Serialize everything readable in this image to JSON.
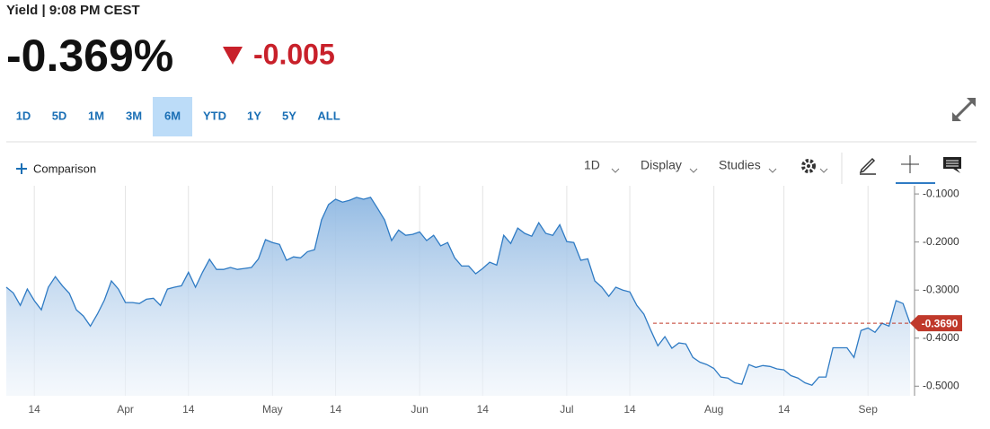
{
  "header": {
    "title": "Yield | 9:08 PM CEST",
    "last": "-0.369%",
    "change": "-0.005"
  },
  "tabs": {
    "items": [
      "1D",
      "5D",
      "1M",
      "3M",
      "6M",
      "YTD",
      "1Y",
      "5Y",
      "ALL"
    ],
    "selected": 4
  },
  "toolbar": {
    "comparison": "Comparison",
    "interval": "1D",
    "display": "Display",
    "studies": "Studies"
  },
  "chart_data": {
    "type": "line",
    "fill": true,
    "color": "#2f7bc4",
    "categories": [
      null,
      null,
      null,
      null,
      "14",
      null,
      null,
      null,
      null,
      null,
      null,
      null,
      null,
      null,
      null,
      null,
      null,
      "Apr",
      null,
      null,
      null,
      null,
      null,
      null,
      null,
      null,
      "14",
      null,
      null,
      null,
      null,
      null,
      null,
      null,
      null,
      null,
      null,
      null,
      "May",
      null,
      null,
      null,
      null,
      null,
      null,
      null,
      null,
      "14",
      null,
      null,
      null,
      null,
      null,
      null,
      null,
      null,
      null,
      null,
      null,
      "Jun",
      null,
      null,
      null,
      null,
      null,
      null,
      null,
      null,
      "14",
      null,
      null,
      null,
      null,
      null,
      null,
      null,
      null,
      null,
      null,
      null,
      "Jul",
      null,
      null,
      null,
      null,
      null,
      null,
      null,
      null,
      "14",
      null,
      null,
      null,
      null,
      null,
      null,
      null,
      null,
      null,
      null,
      null,
      "Aug",
      null,
      null,
      null,
      null,
      null,
      null,
      null,
      null,
      null,
      "14",
      null,
      null,
      null,
      null,
      null,
      null,
      null,
      null,
      null,
      null,
      null,
      "Sep",
      null,
      null,
      null,
      null,
      null,
      null
    ],
    "values": [
      -0.294,
      -0.306,
      -0.332,
      -0.298,
      -0.322,
      -0.341,
      -0.294,
      -0.272,
      -0.291,
      -0.307,
      -0.341,
      -0.354,
      -0.375,
      -0.35,
      -0.321,
      -0.281,
      -0.298,
      -0.326,
      -0.326,
      -0.328,
      -0.319,
      -0.317,
      -0.332,
      -0.298,
      -0.294,
      -0.291,
      -0.263,
      -0.294,
      -0.263,
      -0.236,
      -0.257,
      -0.257,
      -0.253,
      -0.257,
      -0.255,
      -0.253,
      -0.235,
      -0.195,
      -0.201,
      -0.205,
      -0.238,
      -0.231,
      -0.233,
      -0.22,
      -0.216,
      -0.154,
      -0.122,
      -0.111,
      -0.117,
      -0.113,
      -0.107,
      -0.111,
      -0.107,
      -0.13,
      -0.154,
      -0.197,
      -0.175,
      -0.186,
      -0.184,
      -0.179,
      -0.197,
      -0.186,
      -0.208,
      -0.201,
      -0.233,
      -0.25,
      -0.25,
      -0.266,
      -0.255,
      -0.242,
      -0.248,
      -0.186,
      -0.203,
      -0.171,
      -0.182,
      -0.188,
      -0.16,
      -0.182,
      -0.186,
      -0.164,
      -0.199,
      -0.201,
      -0.238,
      -0.235,
      -0.281,
      -0.294,
      -0.313,
      -0.294,
      -0.3,
      -0.304,
      -0.332,
      -0.35,
      -0.384,
      -0.416,
      -0.397,
      -0.421,
      -0.41,
      -0.412,
      -0.44,
      -0.45,
      -0.455,
      -0.463,
      -0.481,
      -0.483,
      -0.493,
      -0.496,
      -0.455,
      -0.461,
      -0.457,
      -0.459,
      -0.464,
      -0.466,
      -0.478,
      -0.483,
      -0.493,
      -0.498,
      -0.481,
      -0.481,
      -0.42,
      -0.42,
      -0.42,
      -0.44,
      -0.384,
      -0.379,
      -0.388,
      -0.369,
      -0.375,
      -0.322,
      -0.328,
      -0.369
    ],
    "ylim": [
      -0.52,
      -0.083
    ],
    "yticks": [
      {
        "value": -0.1,
        "label": "-0.1000"
      },
      {
        "value": -0.2,
        "label": "-0.2000"
      },
      {
        "value": -0.3,
        "label": "-0.3000"
      },
      {
        "value": -0.4,
        "label": "-0.4000"
      },
      {
        "value": -0.5,
        "label": "-0.5000"
      }
    ],
    "price_line": {
      "value": -0.369,
      "label": "-0.3690",
      "color": "#c0392b"
    }
  }
}
